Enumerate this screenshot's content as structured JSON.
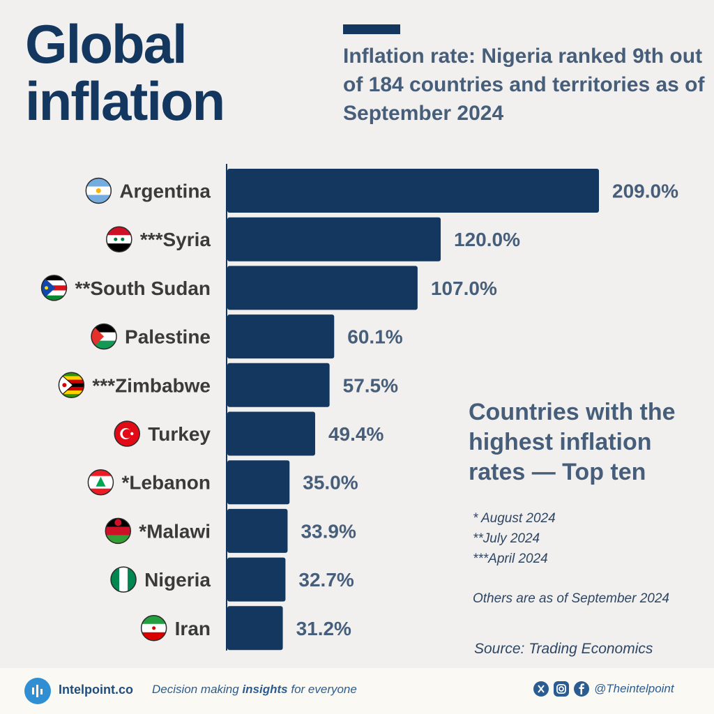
{
  "header": {
    "title_line1": "Global",
    "title_line2": "inflation",
    "subtitle": "Inflation rate: Nigeria ranked 9th out of 184 countries and territories as of September 2024"
  },
  "chart_data": {
    "type": "bar",
    "orientation": "horizontal",
    "title": "Countries with the highest inflation rates — Top ten",
    "categories": [
      "Argentina",
      "***Syria",
      "**South Sudan",
      "Palestine",
      "***Zimbabwe",
      "Turkey",
      "*Lebanon",
      "*Malawi",
      "Nigeria",
      "Iran"
    ],
    "values": [
      209.0,
      120.0,
      107.0,
      60.1,
      57.5,
      49.4,
      35.0,
      33.9,
      32.7,
      31.2
    ],
    "value_labels": [
      "209.0%",
      "120.0%",
      "107.0%",
      "60.1%",
      "57.5%",
      "49.4%",
      "35.0%",
      "33.9%",
      "32.7%",
      "31.2%"
    ],
    "flag_icons": [
      "argentina-flag-icon",
      "syria-flag-icon",
      "south-sudan-flag-icon",
      "palestine-flag-icon",
      "zimbabwe-flag-icon",
      "turkey-flag-icon",
      "lebanon-flag-icon",
      "malawi-flag-icon",
      "nigeria-flag-icon",
      "iran-flag-icon"
    ],
    "xlim": [
      0,
      209.0
    ],
    "xlabel": "",
    "ylabel": "",
    "unit": "%",
    "bar_color": "#13375f"
  },
  "notes": {
    "note1": "*  August 2024",
    "note2": "**July 2024",
    "note3": "***April 2024",
    "others": "Others are as of September 2024",
    "source": "Source: Trading Economics"
  },
  "footer": {
    "brand": "Intelpoint.co",
    "tagline_pre": "Decision making ",
    "tagline_bold": "insights",
    "tagline_post": " for everyone",
    "handle": "@Theintelpoint"
  },
  "colors": {
    "navy": "#13375f",
    "slate": "#475e7a",
    "background": "#f1f0ee",
    "footer": "#fbf9f3",
    "brand_blue": "#2f8fd2"
  }
}
